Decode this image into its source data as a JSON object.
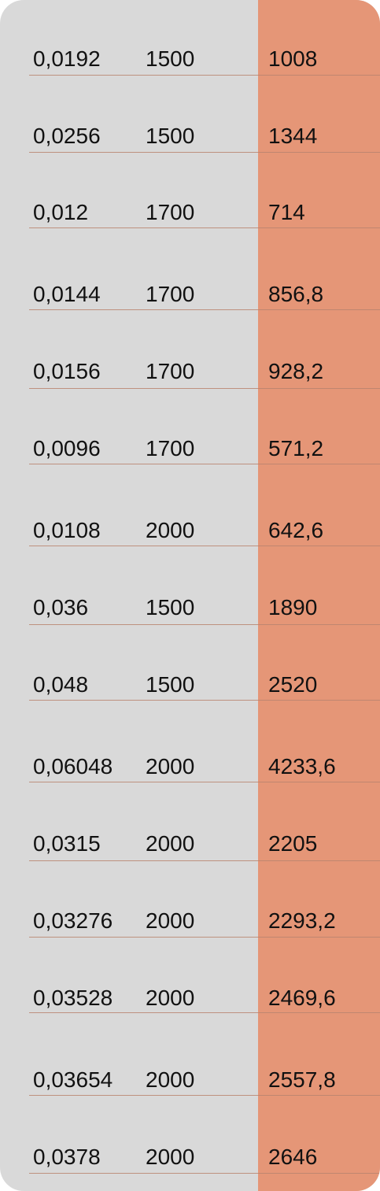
{
  "table": {
    "rows": [
      [
        "0,0192",
        "1500",
        "1008"
      ],
      [
        "0,0256",
        "1500",
        "1344"
      ],
      [
        "0,012",
        "1700",
        "714"
      ],
      [
        "0,0144",
        "1700",
        "856,8"
      ],
      [
        "0,0156",
        "1700",
        "928,2"
      ],
      [
        "0,0096",
        "1700",
        "571,2"
      ],
      [
        "0,0108",
        "2000",
        "642,6"
      ],
      [
        "0,036",
        "1500",
        "1890"
      ],
      [
        "0,048",
        "1500",
        "2520"
      ],
      [
        "0,06048",
        "2000",
        "4233,6"
      ],
      [
        "0,0315",
        "2000",
        "2205"
      ],
      [
        "0,03276",
        "2000",
        "2293,2"
      ],
      [
        "0,03528",
        "2000",
        "2469,6"
      ],
      [
        "0,03654",
        "2000",
        "2557,8"
      ],
      [
        "0,0378",
        "2000",
        "2646"
      ]
    ]
  },
  "colors": {
    "panel_bg": "#d9d9d9",
    "accent_column_bg": "#e59677",
    "rule": "#b8846f",
    "text": "#111111"
  }
}
